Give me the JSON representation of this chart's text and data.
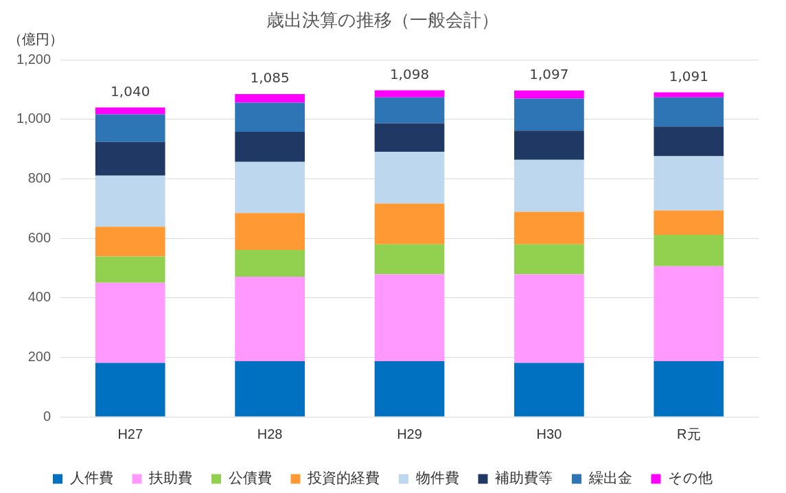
{
  "chart_data": {
    "type": "bar",
    "title": "歳出決算の推移（一般会計）",
    "ylabel": "（億円）",
    "categories": [
      "H27",
      "H28",
      "H29",
      "H30",
      "R元"
    ],
    "stacked": true,
    "series": [
      {
        "name": "人件費",
        "color": "#0070c0",
        "values": [
          181,
          187,
          187,
          181,
          187
        ]
      },
      {
        "name": "扶助費",
        "color": "#ff99ff",
        "values": [
          270,
          284,
          292,
          298,
          319
        ]
      },
      {
        "name": "公債費",
        "color": "#92d050",
        "values": [
          88,
          90,
          101,
          101,
          106
        ]
      },
      {
        "name": "投資的経費",
        "color": "#ff9933",
        "values": [
          100,
          124,
          137,
          109,
          82
        ]
      },
      {
        "name": "物件費",
        "color": "#bdd7ee",
        "values": [
          172,
          172,
          174,
          175,
          182
        ]
      },
      {
        "name": "補助費等",
        "color": "#1f3864",
        "values": [
          113,
          101,
          96,
          98,
          100
        ]
      },
      {
        "name": "繰出金",
        "color": "#2e75b6",
        "values": [
          93,
          98,
          87,
          108,
          98
        ]
      },
      {
        "name": "その他",
        "color": "#ff00ff",
        "values": [
          23,
          29,
          24,
          27,
          17
        ]
      }
    ],
    "totals": [
      "1,040",
      "1,085",
      "1,098",
      "1,097",
      "1,091"
    ],
    "ylim": [
      0,
      1200
    ],
    "yticks": [
      0,
      200,
      400,
      600,
      800,
      {
        "value": 1000,
        "label": "1,000"
      },
      {
        "value": 1200,
        "label": "1,200"
      }
    ],
    "grid": "y",
    "legend": "bottom"
  }
}
